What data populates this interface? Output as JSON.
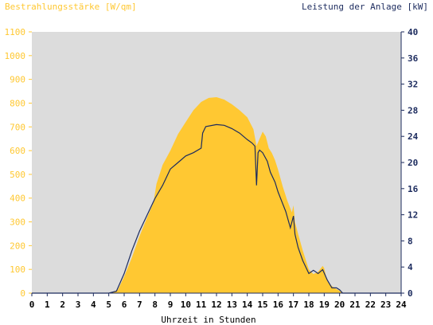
{
  "chart_data": {
    "type": "area",
    "xlabel": "Uhrzeit in Stunden",
    "ylabel_left": "Bestrahlungsstärke [W/qm]",
    "ylabel_right": "Leistung der Anlage [kW]",
    "xlim": [
      0,
      24
    ],
    "ylim_left": [
      0,
      1100
    ],
    "ylim_right": [
      0,
      40
    ],
    "x_ticks": [
      "0",
      "1",
      "2",
      "3",
      "4",
      "5",
      "6",
      "7",
      "8",
      "9",
      "10",
      "11",
      "12",
      "13",
      "14",
      "15",
      "16",
      "17",
      "18",
      "19",
      "20",
      "21",
      "22",
      "23",
      "24"
    ],
    "y_ticks_left": [
      "0",
      "100",
      "200",
      "300",
      "400",
      "500",
      "600",
      "700",
      "800",
      "900",
      "1000",
      "1100"
    ],
    "y_ticks_right": [
      "0",
      "4",
      "8",
      "12",
      "16",
      "20",
      "24",
      "28",
      "32",
      "36",
      "40"
    ],
    "grid": false,
    "colors": {
      "irradiance_fill": "#ffc832",
      "irradiance_axis_text": "#ffc832",
      "power_line": "#1c2b5e",
      "power_axis_text": "#1c2b5e",
      "plot_background": "#dcdcdc"
    },
    "series": [
      {
        "key": "irradiance",
        "x": [
          0,
          5.0,
          5.3,
          5.6,
          6.0,
          6.5,
          7.0,
          7.5,
          7.9,
          8.1,
          8.5,
          9.0,
          9.5,
          10.0,
          10.5,
          11.0,
          11.5,
          12.0,
          12.5,
          13.0,
          13.5,
          14.0,
          14.4,
          14.6,
          14.8,
          15.0,
          15.2,
          15.4,
          15.6,
          15.8,
          16.0,
          16.3,
          16.6,
          16.9,
          17.0,
          17.1,
          17.3,
          17.6,
          18.0,
          18.3,
          18.6,
          18.9,
          19.0,
          19.2,
          19.5,
          19.7,
          20.0,
          20.2,
          24
        ],
        "values": [
          0,
          0,
          5,
          15,
          70,
          150,
          240,
          320,
          380,
          460,
          540,
          600,
          670,
          720,
          770,
          805,
          822,
          825,
          815,
          795,
          770,
          740,
          690,
          620,
          650,
          680,
          660,
          610,
          590,
          560,
          520,
          450,
          390,
          340,
          370,
          300,
          250,
          180,
          100,
          80,
          90,
          115,
          105,
          50,
          30,
          20,
          10,
          0,
          0
        ]
      },
      {
        "key": "power",
        "x": [
          0,
          5.0,
          5.5,
          6.0,
          6.5,
          7.0,
          7.5,
          8.0,
          8.5,
          9.0,
          9.5,
          10.0,
          10.5,
          11.0,
          11.1,
          11.3,
          12.0,
          12.5,
          13.0,
          13.5,
          14.0,
          14.3,
          14.5,
          14.6,
          14.7,
          14.8,
          15.0,
          15.3,
          15.5,
          15.8,
          16.0,
          16.5,
          16.8,
          17.0,
          17.1,
          17.3,
          17.6,
          18.0,
          18.3,
          18.6,
          18.9,
          19.2,
          19.5,
          19.8,
          20.0,
          20.2,
          24
        ],
        "values": [
          0,
          0,
          0.3,
          3,
          6.5,
          9.5,
          12,
          14.5,
          16.5,
          19,
          20,
          21,
          21.5,
          22.2,
          24.5,
          25.5,
          25.8,
          25.7,
          25.2,
          24.5,
          23.5,
          23.0,
          22.5,
          16.5,
          21.5,
          21.9,
          21.5,
          20.2,
          18.5,
          17.0,
          15.5,
          12.5,
          10.0,
          11.8,
          9.0,
          7.0,
          5.0,
          3.0,
          3.5,
          3.0,
          3.6,
          2.0,
          0.8,
          0.8,
          0.5,
          0,
          0
        ]
      }
    ]
  }
}
